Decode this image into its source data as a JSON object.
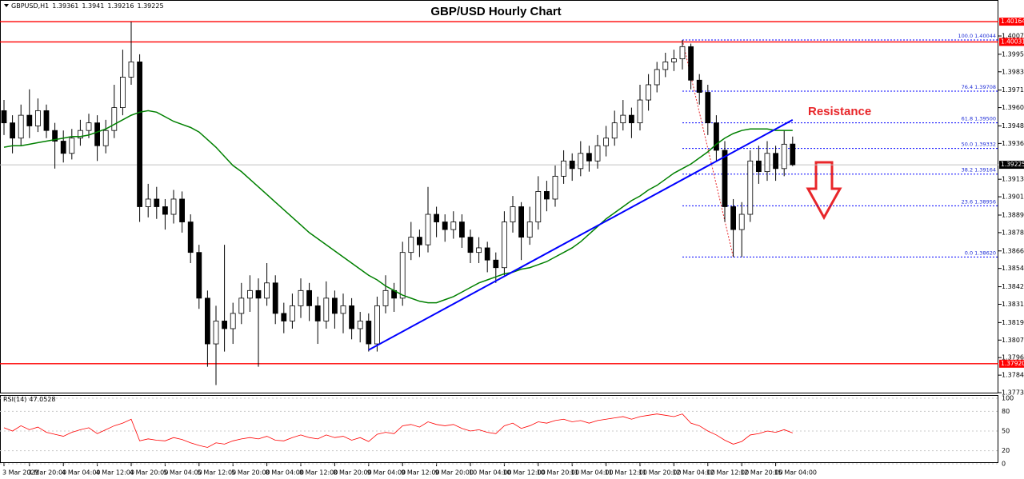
{
  "chart_data": {
    "type": "candlestick",
    "title": "GBP/USD Hourly Chart",
    "symbol": "GBPUSD,H1",
    "annotation": "Resistance",
    "up_color": "#ffffff",
    "down_color": "#000000",
    "ylim": [
      1.37725,
      1.40306
    ],
    "yticks": [
      {
        "value": 1.4007,
        "label": "1.40070"
      },
      {
        "value": 1.3995,
        "label": "1.39950"
      },
      1.39835,
      1.39715,
      {
        "value": 1.396,
        "label": "1.39600"
      },
      {
        "value": 1.3948,
        "label": "1.39480"
      },
      1.39365,
      {
        "value": 1.3913,
        "label": "1.39130"
      },
      1.39015,
      1.38895,
      {
        "value": 1.3878,
        "label": "1.38780"
      },
      {
        "value": 1.3866,
        "label": "1.38660"
      },
      1.38545,
      1.38425,
      {
        "value": 1.3831,
        "label": "1.38310"
      },
      {
        "value": 1.3819,
        "label": "1.38190"
      },
      1.38075,
      {
        "value": 1.3796,
        "label": "1.37960"
      },
      1.37845,
      {
        "value": 1.3773,
        "label": "1.37730"
      }
    ],
    "categories": [
      "3 Mar 2021",
      null,
      null,
      "3 Mar 20:00",
      null,
      null,
      null,
      "4 Mar 04:00",
      null,
      null,
      null,
      "4 Mar 12:00",
      null,
      null,
      null,
      "4 Mar 20:00",
      null,
      null,
      null,
      "5 Mar 04:00",
      null,
      null,
      null,
      "5 Mar 12:00",
      null,
      null,
      null,
      "5 Mar 20:00",
      null,
      null,
      null,
      "8 Mar 04:00",
      null,
      null,
      null,
      "8 Mar 12:00",
      null,
      null,
      null,
      "8 Mar 20:00",
      null,
      null,
      null,
      "9 Mar 04:00",
      null,
      null,
      null,
      "9 Mar 12:00",
      null,
      null,
      null,
      "9 Mar 20:00",
      null,
      null,
      null,
      "10 Mar 04:00",
      null,
      null,
      null,
      "10 Mar 12:00",
      null,
      null,
      null,
      "10 Mar 20:00",
      null,
      null,
      null,
      "11 Mar 04:00",
      null,
      null,
      null,
      "11 Mar 12:00",
      null,
      null,
      null,
      "11 Mar 20:00",
      null,
      null,
      null,
      "12 Mar 04:00",
      null,
      null,
      null,
      "12 Mar 12:00",
      null,
      null,
      null,
      "12 Mar 20:00",
      null,
      null,
      null,
      "15 Mar 04:00",
      null,
      null
    ],
    "candles": {
      "open": [
        1.3958,
        1.395,
        1.394,
        1.3955,
        1.3948,
        1.3958,
        1.3945,
        1.3938,
        1.393,
        1.394,
        1.3945,
        1.395,
        1.3935,
        1.3945,
        1.396,
        1.398,
        1.399,
        1.3895,
        1.39,
        1.3895,
        1.389,
        1.39,
        1.3885,
        1.3865,
        1.3835,
        1.3805,
        1.382,
        1.3815,
        1.3825,
        1.3835,
        1.384,
        1.3835,
        1.3845,
        1.3825,
        1.382,
        1.383,
        1.384,
        1.383,
        1.382,
        1.3835,
        1.3825,
        1.383,
        1.3815,
        1.382,
        1.3805,
        1.383,
        1.384,
        1.3835,
        1.3865,
        1.3875,
        1.387,
        1.389,
        1.3885,
        1.388,
        1.3885,
        1.3875,
        1.3865,
        1.3868,
        1.386,
        1.3855,
        1.3885,
        1.3895,
        1.3875,
        1.3885,
        1.3905,
        1.39,
        1.3915,
        1.3925,
        1.392,
        1.393,
        1.3925,
        1.3935,
        1.394,
        1.395,
        1.3955,
        1.395,
        1.3965,
        1.3975,
        1.3985,
        1.399,
        1.3992,
        1.4,
        1.3978,
        1.397,
        1.395,
        1.3932,
        1.3895,
        1.388,
        1.389,
        1.3925,
        1.3918,
        1.393,
        1.392,
        1.39361
      ],
      "high": [
        1.3965,
        1.3955,
        1.3962,
        1.3972,
        1.3966,
        1.3962,
        1.395,
        1.3945,
        1.3946,
        1.3952,
        1.3956,
        1.3955,
        1.3952,
        1.3975,
        1.3998,
        1.40164,
        1.3995,
        1.391,
        1.3908,
        1.39,
        1.3906,
        1.3905,
        1.389,
        1.387,
        1.384,
        1.383,
        1.387,
        1.3832,
        1.3845,
        1.385,
        1.3848,
        1.3858,
        1.385,
        1.3832,
        1.3838,
        1.3848,
        1.3845,
        1.3836,
        1.3846,
        1.384,
        1.3838,
        1.3835,
        1.3826,
        1.3825,
        1.3836,
        1.385,
        1.3845,
        1.3872,
        1.3885,
        1.388,
        1.3908,
        1.3895,
        1.389,
        1.3892,
        1.389,
        1.388,
        1.3875,
        1.3872,
        1.3865,
        1.3892,
        1.3902,
        1.3898,
        1.3895,
        1.3915,
        1.3912,
        1.3922,
        1.3932,
        1.393,
        1.3938,
        1.3935,
        1.3942,
        1.3948,
        1.3958,
        1.3965,
        1.396,
        1.3975,
        1.3982,
        1.399,
        1.3996,
        1.3998,
        1.40044,
        1.4002,
        1.3982,
        1.3975,
        1.3955,
        1.3938,
        1.39,
        1.3898,
        1.3932,
        1.3935,
        1.3938,
        1.3935,
        1.3945,
        1.3941
      ],
      "low": [
        1.3942,
        1.393,
        1.3935,
        1.394,
        1.3944,
        1.394,
        1.392,
        1.3924,
        1.3926,
        1.3935,
        1.394,
        1.3925,
        1.393,
        1.394,
        1.3955,
        1.3975,
        1.3885,
        1.3888,
        1.3887,
        1.388,
        1.3884,
        1.3878,
        1.3858,
        1.3828,
        1.379,
        1.3778,
        1.38,
        1.3805,
        1.3818,
        1.3826,
        1.379,
        1.383,
        1.3818,
        1.3812,
        1.3815,
        1.3822,
        1.382,
        1.3805,
        1.3815,
        1.3815,
        1.3812,
        1.3808,
        1.3806,
        1.38,
        1.38,
        1.3825,
        1.3826,
        1.383,
        1.386,
        1.3862,
        1.3865,
        1.3875,
        1.3872,
        1.3874,
        1.3868,
        1.3858,
        1.3858,
        1.3852,
        1.3845,
        1.385,
        1.3878,
        1.386,
        1.387,
        1.388,
        1.3892,
        1.3895,
        1.391,
        1.3912,
        1.3915,
        1.3918,
        1.392,
        1.3928,
        1.3935,
        1.3945,
        1.394,
        1.3945,
        1.3958,
        1.397,
        1.398,
        1.3984,
        1.3985,
        1.3972,
        1.3962,
        1.3942,
        1.3925,
        1.3885,
        1.3862,
        1.3862,
        1.3885,
        1.391,
        1.3912,
        1.3912,
        1.3915,
        1.39216
      ],
      "close": [
        1.395,
        1.394,
        1.3955,
        1.3948,
        1.3958,
        1.3945,
        1.3938,
        1.393,
        1.394,
        1.3945,
        1.395,
        1.3935,
        1.3945,
        1.396,
        1.398,
        1.399,
        1.3895,
        1.39,
        1.3895,
        1.389,
        1.39,
        1.3885,
        1.3865,
        1.3835,
        1.3805,
        1.382,
        1.3815,
        1.3825,
        1.3835,
        1.384,
        1.3835,
        1.3845,
        1.3825,
        1.382,
        1.383,
        1.384,
        1.383,
        1.382,
        1.3835,
        1.3825,
        1.383,
        1.3815,
        1.382,
        1.3805,
        1.383,
        1.384,
        1.3835,
        1.3865,
        1.3875,
        1.387,
        1.389,
        1.3885,
        1.388,
        1.3885,
        1.3875,
        1.3865,
        1.3868,
        1.386,
        1.3855,
        1.3885,
        1.3895,
        1.3875,
        1.3885,
        1.3905,
        1.39,
        1.3915,
        1.3925,
        1.392,
        1.393,
        1.3925,
        1.3935,
        1.394,
        1.395,
        1.3955,
        1.395,
        1.3965,
        1.3975,
        1.3985,
        1.399,
        1.3992,
        1.4,
        1.3978,
        1.397,
        1.395,
        1.3932,
        1.3895,
        1.388,
        1.389,
        1.3925,
        1.3918,
        1.393,
        1.392,
        1.3936,
        1.39225
      ]
    },
    "ma": {
      "color": "#008000",
      "values": [
        1.3934,
        1.3935,
        1.3935,
        1.3936,
        1.3937,
        1.3938,
        1.3939,
        1.394,
        1.3941,
        1.3941,
        1.3942,
        1.3944,
        1.3946,
        1.3949,
        1.3952,
        1.3955,
        1.3957,
        1.3958,
        1.3957,
        1.3954,
        1.3951,
        1.3949,
        1.3947,
        1.3944,
        1.3939,
        1.3934,
        1.3928,
        1.3922,
        1.3918,
        1.3913,
        1.3908,
        1.3903,
        1.3898,
        1.3893,
        1.3888,
        1.3883,
        1.3878,
        1.3874,
        1.387,
        1.3866,
        1.3862,
        1.3858,
        1.3854,
        1.385,
        1.3847,
        1.3843,
        1.384,
        1.3837,
        1.3835,
        1.3833,
        1.3832,
        1.3832,
        1.3834,
        1.3836,
        1.3839,
        1.3842,
        1.3845,
        1.3847,
        1.3849,
        1.3851,
        1.3852,
        1.3854,
        1.3855,
        1.3857,
        1.3859,
        1.3862,
        1.3865,
        1.3868,
        1.3872,
        1.3877,
        1.3882,
        1.3887,
        1.3891,
        1.3895,
        1.3899,
        1.3902,
        1.3906,
        1.3909,
        1.3913,
        1.3917,
        1.392,
        1.3923,
        1.3927,
        1.3931,
        1.3936,
        1.394,
        1.3943,
        1.3945,
        1.3946,
        1.3946,
        1.3946,
        1.3945,
        1.3945,
        1.3945
      ]
    },
    "trendline": {
      "color": "#0000ff",
      "x": [
        43,
        93
      ],
      "values": [
        1.3801,
        1.3952
      ]
    },
    "levels": {
      "color": "#ff0000",
      "items": [
        {
          "value": 1.40164,
          "label": "1.40164"
        },
        {
          "value": 1.40031,
          "label": "1.40031"
        },
        {
          "value": 1.3792,
          "label": "1.37920"
        }
      ]
    },
    "fib": {
      "color": "#0000ff",
      "start": 80,
      "end": 86,
      "levels": [
        {
          "ratio": "100.0",
          "value": 1.40044,
          "label": "1.40044"
        },
        {
          "ratio": "76.4",
          "value": 1.39708,
          "label": "1.39708"
        },
        {
          "ratio": "61.8",
          "value": 1.395,
          "label": "1.39500"
        },
        {
          "ratio": "50.0",
          "value": 1.39332,
          "label": "1.39332"
        },
        {
          "ratio": "38.2",
          "value": 1.39164,
          "label": "1.39164"
        },
        {
          "ratio": "23.6",
          "value": 1.38956,
          "label": "1.38956"
        },
        {
          "ratio": "0.0",
          "value": 1.3862,
          "label": "1.38620"
        }
      ]
    },
    "rsi": {
      "label": "RSI(14)",
      "color": "#ff0000",
      "ylim": [
        0,
        100
      ],
      "yticks": [
        100,
        80,
        50,
        20,
        0
      ],
      "values": [
        55,
        50,
        58,
        52,
        56,
        48,
        45,
        42,
        48,
        52,
        55,
        46,
        52,
        58,
        62,
        68,
        35,
        38,
        36,
        35,
        40,
        37,
        32,
        28,
        25,
        32,
        30,
        35,
        38,
        40,
        38,
        42,
        36,
        35,
        40,
        44,
        40,
        38,
        44,
        40,
        42,
        36,
        40,
        34,
        45,
        48,
        46,
        58,
        60,
        56,
        64,
        60,
        58,
        60,
        54,
        50,
        52,
        48,
        46,
        58,
        62,
        54,
        58,
        64,
        62,
        66,
        68,
        64,
        66,
        62,
        66,
        68,
        70,
        72,
        68,
        72,
        74,
        76,
        74,
        72,
        76,
        62,
        58,
        50,
        44,
        36,
        30,
        34,
        44,
        46,
        50,
        48,
        52,
        47.0528
      ]
    }
  }
}
